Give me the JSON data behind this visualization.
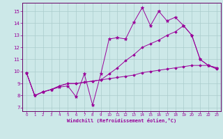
{
  "xlabel": "Windchill (Refroidissement éolien,°C)",
  "background_color": "#cce8e8",
  "grid_color": "#aacccc",
  "line_color": "#990099",
  "spine_color": "#660066",
  "xlim": [
    -0.5,
    23.5
  ],
  "ylim": [
    6.7,
    15.7
  ],
  "yticks": [
    7,
    8,
    9,
    10,
    11,
    12,
    13,
    14,
    15
  ],
  "xticks": [
    0,
    1,
    2,
    3,
    4,
    5,
    6,
    7,
    8,
    9,
    10,
    11,
    12,
    13,
    14,
    15,
    16,
    17,
    18,
    19,
    20,
    21,
    22,
    23
  ],
  "curve1_x": [
    0,
    1,
    2,
    3,
    4,
    5,
    6,
    7,
    8,
    9,
    10,
    11,
    12,
    13,
    14,
    15,
    16,
    17,
    18,
    19,
    20,
    21,
    22,
    23
  ],
  "curve1_y": [
    9.9,
    8.0,
    8.3,
    8.5,
    8.7,
    8.8,
    7.9,
    9.8,
    7.2,
    9.8,
    12.7,
    12.8,
    12.7,
    14.1,
    15.3,
    13.8,
    15.0,
    14.2,
    14.5,
    13.8,
    13.0,
    11.0,
    10.5,
    10.3
  ],
  "curve2_x": [
    0,
    1,
    2,
    3,
    4,
    5,
    6,
    7,
    8,
    9,
    10,
    11,
    12,
    13,
    14,
    15,
    16,
    17,
    18,
    19,
    20,
    21,
    22,
    23
  ],
  "curve2_y": [
    9.9,
    8.0,
    8.3,
    8.5,
    8.8,
    9.0,
    9.0,
    9.1,
    9.2,
    9.3,
    9.8,
    10.3,
    10.9,
    11.4,
    12.0,
    12.3,
    12.6,
    13.0,
    13.3,
    13.8,
    13.0,
    11.0,
    10.5,
    10.3
  ],
  "curve3_x": [
    0,
    1,
    2,
    3,
    4,
    5,
    6,
    7,
    8,
    9,
    10,
    11,
    12,
    13,
    14,
    15,
    16,
    17,
    18,
    19,
    20,
    21,
    22,
    23
  ],
  "curve3_y": [
    9.9,
    8.0,
    8.3,
    8.5,
    8.8,
    9.0,
    9.0,
    9.1,
    9.2,
    9.3,
    9.4,
    9.5,
    9.6,
    9.7,
    9.9,
    10.0,
    10.1,
    10.2,
    10.3,
    10.4,
    10.5,
    10.5,
    10.5,
    10.2
  ]
}
